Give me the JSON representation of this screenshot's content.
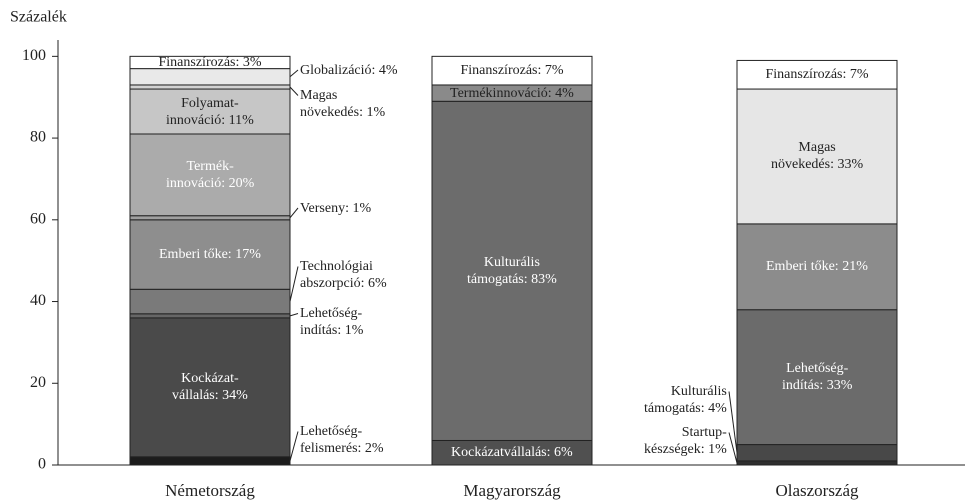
{
  "chart_data": {
    "type": "bar",
    "stacked": true,
    "y_label": "Százalék",
    "categories": [
      "Németország",
      "Magyarország",
      "Olaszország"
    ],
    "ylim": [
      0,
      104
    ],
    "yticks": [
      0,
      20,
      40,
      60,
      80,
      100
    ],
    "series": [
      {
        "values": [
          2,
          null,
          null
        ],
        "value_labels": [
          "Lehetőség-\nfelismerés: 2%",
          null,
          null
        ],
        "colors": [
          "#1c1c1c",
          null,
          null
        ]
      },
      {
        "values": [
          null,
          null,
          1
        ],
        "value_labels": [
          null,
          null,
          "Startup-\nkészségek: 1%"
        ],
        "colors": [
          null,
          null,
          "#2e2e2e"
        ]
      },
      {
        "values": [
          34,
          6,
          null
        ],
        "value_labels": [
          "Kockázat-\nvállalás: 34%",
          "Kockázatvállalás: 6%",
          null
        ],
        "colors": [
          "#4a4a4a",
          "#505050",
          null
        ]
      },
      {
        "values": [
          null,
          83,
          4
        ],
        "value_labels": [
          null,
          "Kulturális\ntámogatás: 83%",
          "Kulturális\ntámogatás: 4%"
        ],
        "colors": [
          null,
          "#6c6c6c",
          "#484848"
        ]
      },
      {
        "values": [
          1,
          null,
          33
        ],
        "value_labels": [
          "Lehetőség-\nindítás: 1%",
          null,
          "Lehetőség-\nindítás: 33%"
        ],
        "colors": [
          "#666666",
          null,
          "#6b6b6b"
        ]
      },
      {
        "values": [
          6,
          null,
          null
        ],
        "value_labels": [
          "Technológiai\nabszorpció: 6%",
          null,
          null
        ],
        "colors": [
          "#7a7a7a",
          null,
          null
        ]
      },
      {
        "values": [
          17,
          null,
          21
        ],
        "value_labels": [
          "Emberi tőke: 17%",
          null,
          "Emberi tőke: 21%"
        ],
        "colors": [
          "#8e8e8e",
          null,
          "#8c8c8c"
        ]
      },
      {
        "values": [
          1,
          null,
          null
        ],
        "value_labels": [
          "Verseny: 1%",
          null,
          null
        ],
        "colors": [
          "#a0a0a0",
          null,
          null
        ]
      },
      {
        "values": [
          20,
          4,
          null
        ],
        "value_labels": [
          "Termék-\ninnováció: 20%",
          "Termékinnováció: 4%",
          null
        ],
        "colors": [
          "#ababab",
          "#8a8a8a",
          null
        ]
      },
      {
        "values": [
          11,
          null,
          null
        ],
        "value_labels": [
          "Folyamat-\ninnováció: 11%",
          null,
          null
        ],
        "colors": [
          "#c6c6c6",
          null,
          null
        ]
      },
      {
        "values": [
          1,
          null,
          33
        ],
        "value_labels": [
          "Magas\nnövekedés: 1%",
          null,
          "Magas\nnövekedés: 33%"
        ],
        "colors": [
          "#d2d2d2",
          null,
          "#e6e6e6"
        ]
      },
      {
        "values": [
          4,
          null,
          null
        ],
        "value_labels": [
          "Globalizáció: 4%",
          null,
          null
        ],
        "colors": [
          "#e9e9e9",
          null,
          null
        ]
      },
      {
        "values": [
          3,
          7,
          7
        ],
        "value_labels": [
          "Finanszírozás: 3%",
          "Finanszírozás: 7%",
          "Finanszírozás: 7%"
        ],
        "colors": [
          "#ffffff",
          "#ffffff",
          "#ffffff"
        ]
      }
    ]
  }
}
